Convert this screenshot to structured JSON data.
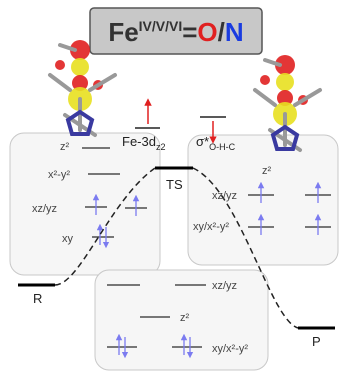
{
  "title": {
    "base": "Fe",
    "superscript": "IV/V/VI",
    "equals": "=",
    "oxo": "O",
    "slash": "/",
    "nitrido": "N"
  },
  "orbitals": {
    "fe_3d": "Fe-3d",
    "fe_3d_sub": "z2",
    "sigma": "σ*",
    "sigma_sub": "O-H-C"
  },
  "states": {
    "reactant": "R",
    "transition": "TS",
    "product": "P"
  },
  "left_box": {
    "z2": "z²",
    "x2y2": "x²-y²",
    "xzyz": "xz/yz",
    "xy": "xy"
  },
  "right_box": {
    "z2": "z²",
    "xzyz": "xz/yz",
    "xyx2y2": "xy/x²-y²"
  },
  "bottom_box": {
    "xzyz": "xz/yz",
    "z2": "z²",
    "xyx2y2": "xy/x²-y²"
  }
}
